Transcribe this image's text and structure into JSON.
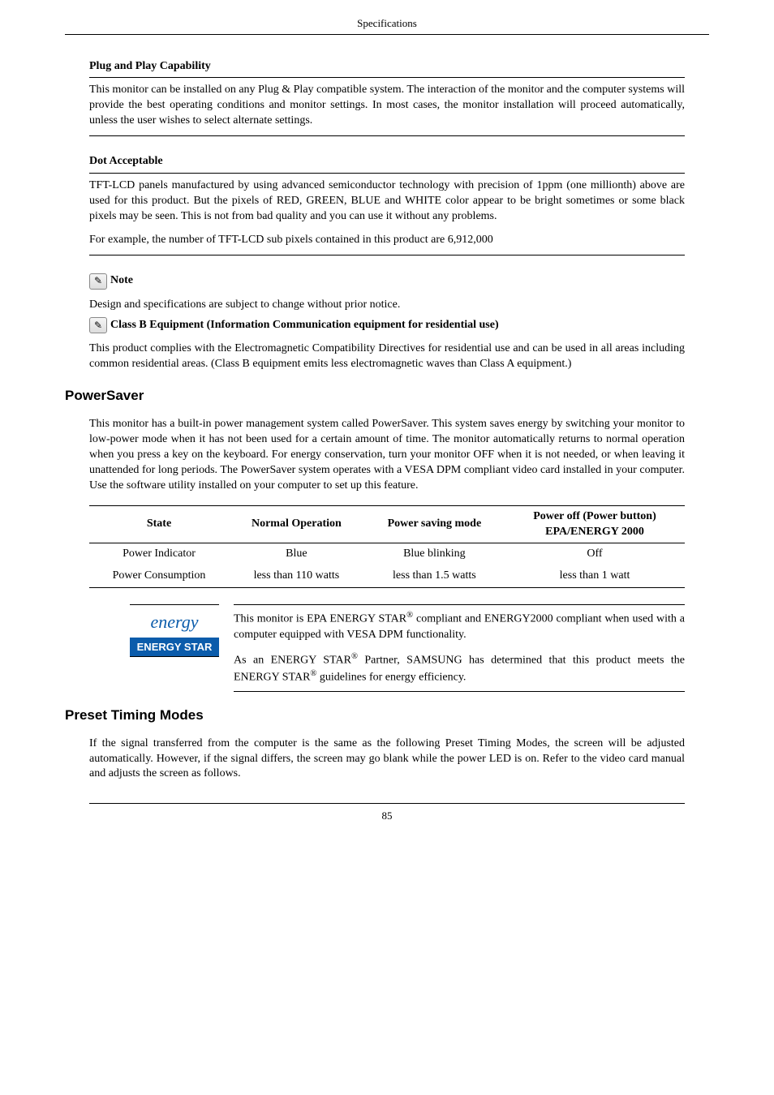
{
  "header": "Specifications",
  "plug": {
    "title": "Plug and Play Capability",
    "body": "This monitor can be installed on any Plug & Play compatible system. The interaction of the monitor and the computer systems will provide the best operating conditions and monitor settings. In most cases, the monitor installation will proceed automatically, unless the user wishes to select alternate settings."
  },
  "dot": {
    "title": "Dot Acceptable",
    "body1": "TFT-LCD panels manufactured by using advanced semiconductor technology with precision of 1ppm (one millionth) above are used for this product. But the pixels of RED, GREEN, BLUE and WHITE color appear to be bright sometimes or some black pixels may be seen. This is not from bad quality and you can use it without any problems.",
    "body2": "For example, the number of TFT-LCD sub pixels contained in this product are 6,912,000"
  },
  "note_icon": "✎",
  "note_label": "Note",
  "design_line": "Design and specifications are subject to change without prior notice.",
  "classb_title": "Class B Equipment (Information Communication equipment for residential use)",
  "classb_body": "This product complies with the Electromagnetic Compatibility Directives for residential use and can be used in all areas including common residential areas. (Class B equipment emits less electromagnetic waves than Class A equipment.)",
  "powersaver": {
    "title": "PowerSaver",
    "body": "This monitor has a built-in power management system called PowerSaver. This system saves energy by switching your monitor to low-power mode when it has not been used for a certain amount of time. The monitor automatically returns to normal operation when you press a key on the keyboard. For energy conservation, turn your monitor OFF when it is not needed, or when leaving it unattended for long periods. The PowerSaver system operates with a VESA DPM compliant video card installed in your computer. Use the software utility installed on your computer to set up this feature."
  },
  "table": {
    "headers": {
      "state": "State",
      "normal": "Normal Operation",
      "saving": "Power saving mode",
      "off1": "Power off (Power button)",
      "off2": "EPA/ENERGY 2000"
    },
    "row1": {
      "label": "Power Indicator",
      "c1": "Blue",
      "c2": "Blue blinking",
      "c3": "Off"
    },
    "row2": {
      "label": "Power Consumption",
      "c1": "less than 110 watts",
      "c2": "less than 1.5 watts",
      "c3": "less than 1 watt"
    }
  },
  "energy": {
    "swirl": "energy",
    "box": "ENERGY STAR",
    "p1a": "This monitor is EPA ENERGY STAR",
    "sup": "®",
    "p1b": " compliant and ENERGY2000 compliant when used with a computer equipped with VESA DPM functionality.",
    "p2a": "As an ENERGY STAR",
    "p2b": " Partner, SAMSUNG has determined that this product meets the ENERGY STAR",
    "p2c": " guidelines for energy efficiency."
  },
  "preset": {
    "title": "Preset Timing Modes",
    "body": "If the signal transferred from the computer is the same as the following Preset Timing Modes, the screen will be adjusted automatically. However, if the signal differs, the screen may go blank while the power LED is on. Refer to the video card manual and adjusts the screen as follows."
  },
  "page_number": "85"
}
